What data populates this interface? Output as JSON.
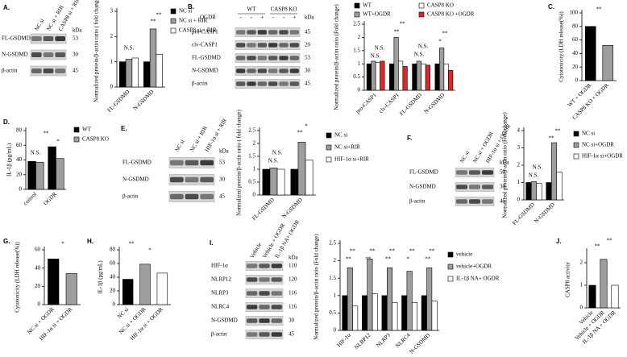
{
  "chart_data": [
    {
      "panel": "A.",
      "type": "bar",
      "ylabel": "Normalized protein/β-actin ratio ( fold change)",
      "categories": [
        "FL-GSDMD",
        "N-GSDMD"
      ],
      "series": [
        {
          "name": "NC si",
          "color": "#000000",
          "values": [
            1,
            1
          ]
        },
        {
          "name": "NC si + RIR",
          "color": "#9e9e9e",
          "values": [
            1.1,
            2.3
          ]
        },
        {
          "name": "CASP8 si + RIR",
          "color": "#ffffff",
          "values": [
            1.15,
            1.3
          ]
        }
      ],
      "ylim": [
        0,
        3
      ],
      "yticks": [
        0,
        1,
        2,
        3
      ],
      "annotations": [
        "N.S.",
        "**",
        "**"
      ]
    },
    {
      "panel": "B.",
      "type": "bar",
      "ylabel": "Normalized protein/β-actin ratio (Fold change)",
      "categories": [
        "pro-CASP1",
        "clv-CASP1",
        "FL-GSDMD",
        "N-GSDMD"
      ],
      "series": [
        {
          "name": "WT",
          "color": "#000000",
          "values": [
            1,
            1,
            1,
            1
          ]
        },
        {
          "name": "WT+OGDR",
          "color": "#9e9e9e",
          "values": [
            1.1,
            2.0,
            1.1,
            1.6
          ]
        },
        {
          "name": "CASP8 KO",
          "color": "#ffffff",
          "values": [
            1.05,
            1.1,
            1.0,
            1.0
          ]
        },
        {
          "name": "CASP8 KO +OGDR",
          "color": "#e0262b",
          "values": [
            1.1,
            0.9,
            0.95,
            0.75
          ]
        }
      ],
      "ylim": [
        0,
        2.5
      ],
      "yticks": [
        0,
        0.5,
        1,
        1.5,
        2,
        2.5
      ],
      "annotations": [
        "N.S.",
        "N.S.",
        "**",
        "**",
        "N.S.",
        "N.S.",
        "*",
        "**"
      ]
    },
    {
      "panel": "C.",
      "type": "bar",
      "ylabel": "Cytotoxicity (LDH release(%))",
      "categories": [
        "WT + OGDR",
        "CASP8 KO + OGDR"
      ],
      "values": [
        80,
        52
      ],
      "colors": [
        "#000000",
        "#9e9e9e"
      ],
      "ylim": [
        0,
        100
      ],
      "yticks": [
        0,
        20,
        40,
        60,
        80,
        100
      ],
      "annotations": [
        "**"
      ]
    },
    {
      "panel": "D.",
      "type": "bar",
      "ylabel": "IL-1β (pg/mL)",
      "categories": [
        "control",
        "OGDR"
      ],
      "series": [
        {
          "name": "WT",
          "color": "#000000",
          "values": [
            38,
            58
          ]
        },
        {
          "name": "CASP8 KO",
          "color": "#9e9e9e",
          "values": [
            37,
            42
          ]
        }
      ],
      "ylim": [
        0,
        80
      ],
      "yticks": [
        0,
        20,
        40,
        60,
        80
      ],
      "annotations": [
        "N.S.",
        "**",
        "*"
      ]
    },
    {
      "panel": "E.",
      "type": "bar",
      "ylabel": "Normalized protein/β-actin ratio ( fold change)",
      "categories": [
        "FL-GSDMD",
        "N-GSDMD"
      ],
      "series": [
        {
          "name": "NC si",
          "color": "#000000",
          "values": [
            1,
            1
          ]
        },
        {
          "name": "NC si+RIR",
          "color": "#9e9e9e",
          "values": [
            1.05,
            2.05
          ]
        },
        {
          "name": "HIF-1α si+RIR",
          "color": "#ffffff",
          "values": [
            1.0,
            1.35
          ]
        }
      ],
      "ylim": [
        0,
        2.5
      ],
      "yticks": [
        0,
        0.5,
        1,
        1.5,
        2,
        2.5
      ],
      "annotations": [
        "N.S.",
        "N.S.",
        "**",
        "*"
      ]
    },
    {
      "panel": "F.",
      "type": "bar",
      "ylabel": "Normalized protein/β-actin ratio (Fold change)",
      "categories": [
        "FL-GSDMD",
        "N-GSDMD"
      ],
      "series": [
        {
          "name": "NC si",
          "color": "#000000",
          "values": [
            1,
            1
          ]
        },
        {
          "name": "NC si+OGDR",
          "color": "#9e9e9e",
          "values": [
            1.05,
            3.3
          ]
        },
        {
          "name": "HIF-1α si+OGDR",
          "color": "#ffffff",
          "values": [
            0.95,
            1.6
          ]
        }
      ],
      "ylim": [
        0,
        4
      ],
      "yticks": [
        0,
        1,
        2,
        3,
        4
      ],
      "annotations": [
        "N.S.",
        "N.S.",
        "**",
        "**"
      ]
    },
    {
      "panel": "G.",
      "type": "bar",
      "ylabel": "Cytotoxicity (LDH release(%))",
      "categories": [
        "NC si + OGDR",
        "HIF-1α si + OGDR"
      ],
      "values": [
        50,
        34
      ],
      "colors": [
        "#000000",
        "#9e9e9e"
      ],
      "ylim": [
        0,
        60
      ],
      "yticks": [
        0,
        20,
        40,
        60
      ],
      "annotations": [
        "*"
      ]
    },
    {
      "panel": "H.",
      "type": "bar",
      "ylabel": "IL-1β (pg/mL)",
      "categories": [
        "NC si",
        "NC si + OGDR",
        "HIF-1α si + OGDR"
      ],
      "values": [
        37,
        59,
        46
      ],
      "colors": [
        "#000000",
        "#9e9e9e",
        "#ffffff"
      ],
      "ylim": [
        0,
        80
      ],
      "yticks": [
        0,
        20,
        40,
        60,
        80
      ],
      "annotations": [
        "**",
        "*"
      ]
    },
    {
      "panel": "I.",
      "type": "bar",
      "ylabel": "Normalized protein/β-actin ratio (Fold change)",
      "categories": [
        "HIF-1α",
        "NLRP12",
        "NLRP3",
        "NLRC4",
        "N-GSDMD"
      ],
      "series": [
        {
          "name": "vehicle",
          "color": "#000000",
          "values": [
            1,
            1,
            1,
            1,
            1
          ]
        },
        {
          "name": "vehicle+OGDR",
          "color": "#9e9e9e",
          "values": [
            1.8,
            2.05,
            1.8,
            1.7,
            1.8
          ]
        },
        {
          "name": "IL-1β NA+ OGDR",
          "color": "#ffffff",
          "values": [
            0.7,
            1.05,
            0.8,
            0.8,
            0.85
          ]
        }
      ],
      "ylim": [
        0,
        2.5
      ],
      "yticks": [
        0,
        0.5,
        1,
        1.5,
        2,
        2.5
      ],
      "annotations": [
        "**",
        "**",
        "**",
        "**",
        "**",
        "**",
        "*",
        "**",
        "**",
        "**"
      ]
    },
    {
      "panel": "J.",
      "type": "bar",
      "ylabel": "CASP8 activity",
      "categories": [
        "Vehicle",
        "Vehicle + OGDR",
        "IL-1β NA + OGDR"
      ],
      "values": [
        1,
        2.15,
        1.0
      ],
      "colors": [
        "#000000",
        "#9e9e9e",
        "#ffffff"
      ],
      "ylim": [
        0,
        2.5
      ],
      "yticks": [
        0,
        1,
        2
      ],
      "annotations": [
        "**",
        "**"
      ]
    }
  ],
  "blots": [
    {
      "columns": [
        "NC si",
        "NC si + RIR",
        "CASP8 si + RIR"
      ],
      "unit": "kDa",
      "rows": [
        {
          "label": "FL-GSDMD",
          "kda": 53
        },
        {
          "label": "N-GSDMD",
          "kda": 30
        },
        {
          "label": "β-actin",
          "kda": 45
        }
      ]
    },
    {
      "treatment": "OGDR",
      "groups": [
        "WT",
        "CASP8 KO"
      ],
      "signs": [
        "-",
        "-",
        "+",
        "-",
        "-",
        "+"
      ],
      "unit": "kDa",
      "rows": [
        {
          "label": "pro-CASP1",
          "kda": 45
        },
        {
          "label": "clv-CASP1",
          "kda": 20
        },
        {
          "label": "FL-GSDMD",
          "kda": 53
        },
        {
          "label": "N-GSDMD",
          "kda": 30
        },
        {
          "label": "β-actin",
          "kda": 45
        }
      ]
    },
    {
      "columns": [
        "NC si",
        "NC si + RIR",
        "HIF-1α si + RIR"
      ],
      "unit": "kDa",
      "rows": [
        {
          "label": "FL-GSDMD",
          "kda": 53
        },
        {
          "label": "N-GSDMD",
          "kda": 30
        },
        {
          "label": "β-actin",
          "kda": 45
        }
      ]
    },
    {
      "columns": [
        "NC si",
        "NC si + OGDR",
        "HIF-1α si + OGDR"
      ],
      "unit": "kDa",
      "rows": [
        {
          "label": "FL-GSDMD",
          "kda": 53
        },
        {
          "label": "N-GSDMD",
          "kda": 30
        },
        {
          "label": "β-actin",
          "kda": 45
        }
      ]
    },
    {
      "columns": [
        "Vehicle",
        "Vehicle + OGDR",
        "IL-1β NA+ OGDR"
      ],
      "unit": "kDa",
      "rows": [
        {
          "label": "HIF-1α",
          "kda": 110
        },
        {
          "label": "NLRP12",
          "kda": 120
        },
        {
          "label": "NLRP3",
          "kda": 116
        },
        {
          "label": "NLRC4",
          "kda": 116
        },
        {
          "label": "N-GSDMD",
          "kda": 30
        },
        {
          "label": "β-actin",
          "kda": 45
        }
      ]
    }
  ]
}
